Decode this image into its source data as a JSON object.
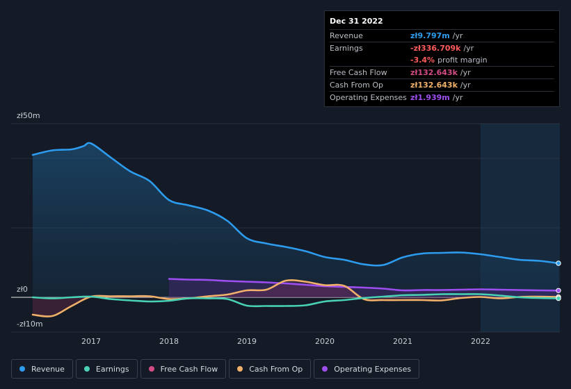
{
  "colors": {
    "revenue": "#2d9cef",
    "earnings": "#48d1b5",
    "free_cash_flow": "#d44c86",
    "cash_from_op": "#f1b16a",
    "operating_expenses": "#9d4ef0",
    "loss_red": "#ff5b5b"
  },
  "tooltip": {
    "date": "Dec 31 2022",
    "rows": [
      {
        "label": "Revenue",
        "value": "zł9.797m",
        "unit": "/yr",
        "color": "#2d9cef"
      },
      {
        "label": "Earnings",
        "value": "-zł336.709k",
        "unit": "/yr",
        "color": "#ff5b5b"
      },
      {
        "label": "",
        "value": "-3.4%",
        "unit": "profit margin",
        "color": "#ff5b5b"
      },
      {
        "label": "Free Cash Flow",
        "value": "zł132.643k",
        "unit": "/yr",
        "color": "#d44c86"
      },
      {
        "label": "Cash From Op",
        "value": "zł132.643k",
        "unit": "/yr",
        "color": "#f1b16a"
      },
      {
        "label": "Operating Expenses",
        "value": "zł1.939m",
        "unit": "/yr",
        "color": "#9d4ef0"
      }
    ]
  },
  "legend": [
    {
      "label": "Revenue",
      "color": "#2d9cef"
    },
    {
      "label": "Earnings",
      "color": "#48d1b5"
    },
    {
      "label": "Free Cash Flow",
      "color": "#d44c86"
    },
    {
      "label": "Cash From Op",
      "color": "#f1b16a"
    },
    {
      "label": "Operating Expenses",
      "color": "#9d4ef0"
    }
  ],
  "chart_data": {
    "type": "area",
    "title": "",
    "y_unit": "zł (millions)",
    "ylim": [
      -10,
      50
    ],
    "xlim": [
      2016.25,
      2023.0
    ],
    "y_axis_labels": [
      {
        "value": 50,
        "label": "zł50m"
      },
      {
        "value": 0,
        "label": "zł0"
      },
      {
        "value": -10,
        "label": "-zł10m"
      }
    ],
    "x_ticks": [
      {
        "value": 2017,
        "label": "2017"
      },
      {
        "value": 2018,
        "label": "2018"
      },
      {
        "value": 2019,
        "label": "2019"
      },
      {
        "value": 2020,
        "label": "2020"
      },
      {
        "value": 2021,
        "label": "2021"
      },
      {
        "value": 2022,
        "label": "2022"
      }
    ],
    "highlight_from": 2022.0,
    "series": [
      {
        "name": "Revenue",
        "key": "revenue",
        "fill": true,
        "x": [
          2016.25,
          2016.5,
          2016.75,
          2016.9,
          2017.0,
          2017.25,
          2017.5,
          2017.75,
          2018.0,
          2018.25,
          2018.5,
          2018.75,
          2019.0,
          2019.25,
          2019.5,
          2019.75,
          2020.0,
          2020.25,
          2020.5,
          2020.75,
          2021.0,
          2021.25,
          2021.5,
          2021.75,
          2022.0,
          2022.25,
          2022.5,
          2022.75,
          2023.0
        ],
        "values": [
          41.0,
          42.3,
          42.6,
          43.5,
          44.3,
          40.3,
          36.3,
          33.5,
          28.0,
          26.5,
          25.0,
          22.0,
          17.0,
          15.5,
          14.5,
          13.3,
          11.6,
          10.8,
          9.5,
          9.3,
          11.5,
          12.6,
          12.8,
          12.9,
          12.4,
          11.6,
          10.8,
          10.5,
          9.8
        ]
      },
      {
        "name": "Earnings",
        "key": "earnings",
        "fill": false,
        "x": [
          2016.25,
          2016.5,
          2016.75,
          2017.0,
          2017.25,
          2017.5,
          2017.75,
          2018.0,
          2018.25,
          2018.5,
          2018.75,
          2019.0,
          2019.25,
          2019.5,
          2019.75,
          2020.0,
          2020.25,
          2020.5,
          2020.75,
          2021.0,
          2021.25,
          2021.5,
          2021.75,
          2022.0,
          2022.25,
          2022.5,
          2022.75,
          2023.0
        ],
        "values": [
          0.0,
          -0.3,
          0.0,
          0.2,
          -0.5,
          -0.9,
          -1.2,
          -1.0,
          -0.3,
          -0.3,
          -0.5,
          -2.4,
          -2.5,
          -2.5,
          -2.3,
          -1.2,
          -0.8,
          -0.2,
          0.2,
          0.6,
          0.7,
          0.9,
          0.9,
          0.9,
          0.5,
          0.0,
          -0.2,
          -0.3
        ]
      },
      {
        "name": "Free Cash Flow",
        "key": "free_cash_flow",
        "fill": true,
        "x": [
          2016.25,
          2016.5,
          2016.75,
          2017.0,
          2017.25,
          2017.5,
          2017.75,
          2018.0,
          2018.25,
          2018.5,
          2018.75,
          2019.0,
          2019.25,
          2019.5,
          2019.75,
          2020.0,
          2020.25,
          2020.5,
          2020.75,
          2021.0,
          2021.25,
          2021.5,
          2021.75,
          2022.0,
          2022.25,
          2022.5,
          2022.75,
          2023.0
        ],
        "values": [
          -5.0,
          -5.4,
          -2.5,
          0.2,
          0.3,
          0.3,
          0.3,
          -0.5,
          -0.3,
          0.3,
          0.8,
          2.0,
          2.2,
          4.8,
          4.5,
          3.5,
          3.3,
          -0.5,
          -0.8,
          -0.8,
          -0.8,
          -0.9,
          -0.2,
          0.1,
          -0.3,
          0.1,
          0.2,
          0.1
        ]
      },
      {
        "name": "Cash From Op",
        "key": "cash_from_op",
        "fill": false,
        "x": [
          2016.25,
          2016.5,
          2016.75,
          2017.0,
          2017.25,
          2017.5,
          2017.75,
          2018.0,
          2018.25,
          2018.5,
          2018.75,
          2019.0,
          2019.25,
          2019.5,
          2019.75,
          2020.0,
          2020.25,
          2020.5,
          2020.75,
          2021.0,
          2021.25,
          2021.5,
          2021.75,
          2022.0,
          2022.25,
          2022.5,
          2022.75,
          2023.0
        ],
        "values": [
          -5.0,
          -5.4,
          -2.5,
          0.2,
          0.3,
          0.3,
          0.3,
          -0.5,
          -0.3,
          0.3,
          0.8,
          2.0,
          2.2,
          4.8,
          4.5,
          3.5,
          3.3,
          -0.5,
          -0.8,
          -0.8,
          -0.8,
          -0.9,
          -0.2,
          0.1,
          -0.3,
          0.1,
          0.2,
          0.1
        ]
      },
      {
        "name": "Operating Expenses",
        "key": "operating_expenses",
        "fill": true,
        "x": [
          2018.0,
          2018.25,
          2018.5,
          2018.75,
          2019.0,
          2019.25,
          2019.5,
          2019.75,
          2020.0,
          2020.25,
          2020.5,
          2020.75,
          2021.0,
          2021.25,
          2021.5,
          2021.75,
          2022.0,
          2022.25,
          2022.5,
          2022.75,
          2023.0
        ],
        "values": [
          5.3,
          5.1,
          5.0,
          4.7,
          4.5,
          4.3,
          4.0,
          3.6,
          3.2,
          3.0,
          2.8,
          2.5,
          2.0,
          2.1,
          2.1,
          2.2,
          2.3,
          2.2,
          2.1,
          2.0,
          1.94
        ]
      }
    ]
  }
}
